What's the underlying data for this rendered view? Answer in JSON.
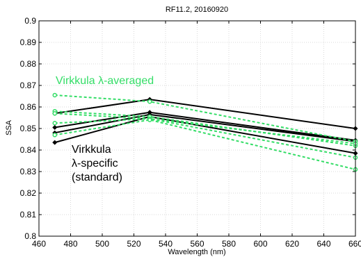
{
  "chart_data": {
    "type": "line",
    "title": "RF11.2, 20160920",
    "xlabel": "Wavelength (nm)",
    "ylabel": "SSA",
    "xlim": [
      460,
      660
    ],
    "ylim": [
      0.8,
      0.9
    ],
    "x": [
      470,
      530,
      660
    ],
    "xticks": [
      "460",
      "480",
      "500",
      "520",
      "540",
      "560",
      "580",
      "600",
      "620",
      "640",
      "660"
    ],
    "yticks": [
      "0.8",
      "0.81",
      "0.82",
      "0.83",
      "0.84",
      "0.85",
      "0.86",
      "0.87",
      "0.88",
      "0.89",
      "0.9"
    ],
    "grid": true,
    "colors": {
      "averaged": "#33dd66",
      "specific": "#000000"
    },
    "annotations": [
      {
        "lines": [
          "Virkkula λ-averaged"
        ],
        "color": "#33dd66"
      },
      {
        "lines": [
          "Virkkula",
          "λ-specific",
          "(standard)"
        ],
        "color": "#000000"
      }
    ],
    "series": [
      {
        "group": "averaged",
        "values": [
          0.8655,
          0.8625,
          0.844
        ]
      },
      {
        "group": "averaged",
        "values": [
          0.858,
          0.8555,
          0.842
        ]
      },
      {
        "group": "averaged",
        "values": [
          0.857,
          0.8545,
          0.843
        ]
      },
      {
        "group": "averaged",
        "values": [
          0.8525,
          0.8545,
          0.8365
        ]
      },
      {
        "group": "averaged",
        "values": [
          0.847,
          0.854,
          0.831
        ]
      },
      {
        "group": "specific",
        "values": [
          0.857,
          0.8635,
          0.85
        ]
      },
      {
        "group": "specific",
        "values": [
          0.8505,
          0.8575,
          0.8445
        ]
      },
      {
        "group": "specific",
        "values": [
          0.848,
          0.8565,
          0.844
        ]
      },
      {
        "group": "specific",
        "values": [
          0.8435,
          0.8555,
          0.8385
        ]
      }
    ]
  }
}
